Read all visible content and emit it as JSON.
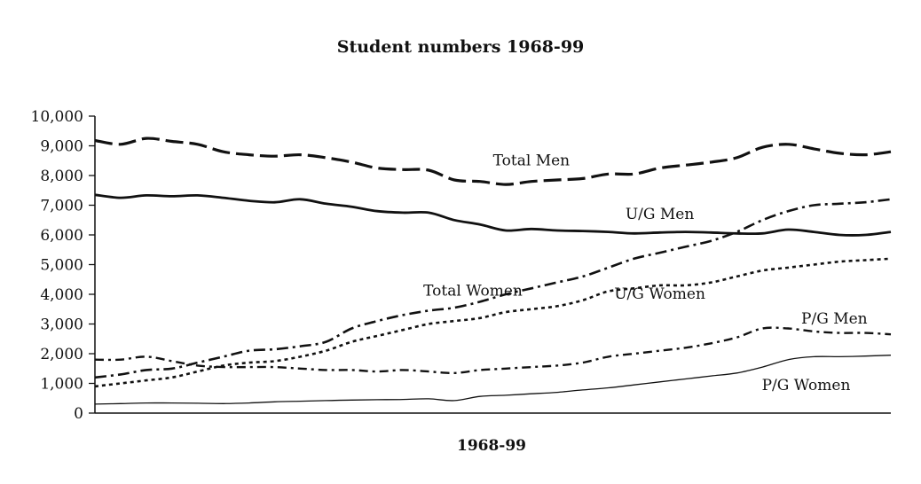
{
  "chart_data": {
    "type": "line",
    "title": "Student numbers 1968-99",
    "xlabel": "1968-99",
    "ylabel": "",
    "ylim": [
      0,
      10000
    ],
    "ytick_labels": [
      "0",
      "1,000",
      "2,000",
      "3,000",
      "4,000",
      "5,000",
      "6,000",
      "7,000",
      "8,000",
      "9,000",
      "10,000"
    ],
    "x": [
      "1968",
      "1969",
      "1970",
      "1971",
      "1972",
      "1973",
      "1974",
      "1975",
      "1976",
      "1977",
      "1978",
      "1979",
      "1980",
      "1981",
      "1982",
      "1983",
      "1984",
      "1985",
      "1986",
      "1987",
      "1988",
      "1989",
      "1990",
      "1991",
      "1992",
      "1993",
      "1994",
      "1995",
      "1996",
      "1997",
      "1998",
      "1999"
    ],
    "grid": false,
    "legend": "none",
    "series": [
      {
        "name": "Total Men",
        "style": "long-dash",
        "values": [
          9180,
          9050,
          9250,
          9150,
          9050,
          8800,
          8700,
          8650,
          8700,
          8600,
          8450,
          8250,
          8200,
          8180,
          7850,
          7800,
          7700,
          7800,
          7850,
          7900,
          8050,
          8050,
          8250,
          8350,
          8450,
          8600,
          8950,
          9050,
          8900,
          8750,
          8700,
          8800
        ]
      },
      {
        "name": "U/G Men",
        "style": "solid-thick",
        "values": [
          7350,
          7250,
          7330,
          7300,
          7330,
          7250,
          7150,
          7100,
          7200,
          7050,
          6950,
          6800,
          6750,
          6750,
          6500,
          6350,
          6150,
          6200,
          6150,
          6130,
          6100,
          6050,
          6080,
          6100,
          6080,
          6050,
          6050,
          6180,
          6100,
          6000,
          6000,
          6100
        ]
      },
      {
        "name": "Total Women",
        "style": "dash-dot",
        "values": [
          1200,
          1300,
          1450,
          1500,
          1700,
          1900,
          2100,
          2150,
          2250,
          2400,
          2850,
          3100,
          3300,
          3450,
          3550,
          3750,
          4000,
          4200,
          4400,
          4600,
          4900,
          5200,
          5400,
          5600,
          5800,
          6100,
          6500,
          6800,
          7000,
          7050,
          7100,
          7200
        ]
      },
      {
        "name": "U/G Women",
        "style": "dotted",
        "values": [
          900,
          1000,
          1100,
          1200,
          1400,
          1600,
          1700,
          1750,
          1900,
          2100,
          2400,
          2600,
          2800,
          3000,
          3100,
          3200,
          3400,
          3500,
          3600,
          3800,
          4100,
          4200,
          4300,
          4300,
          4400,
          4600,
          4800,
          4900,
          5000,
          5100,
          5150,
          5200
        ]
      },
      {
        "name": "P/G Men",
        "style": "dash-dot-light",
        "values": [
          1800,
          1800,
          1900,
          1750,
          1600,
          1550,
          1550,
          1550,
          1500,
          1450,
          1450,
          1400,
          1450,
          1400,
          1350,
          1450,
          1500,
          1550,
          1600,
          1700,
          1900,
          2000,
          2100,
          2200,
          2350,
          2550,
          2850,
          2850,
          2750,
          2700,
          2700,
          2650
        ]
      },
      {
        "name": "P/G Women",
        "style": "solid-thin",
        "values": [
          300,
          320,
          340,
          340,
          330,
          320,
          340,
          380,
          400,
          420,
          440,
          450,
          460,
          480,
          420,
          560,
          600,
          650,
          700,
          780,
          850,
          950,
          1050,
          1150,
          1250,
          1350,
          1550,
          1800,
          1900,
          1900,
          1920,
          1950
        ]
      }
    ]
  }
}
